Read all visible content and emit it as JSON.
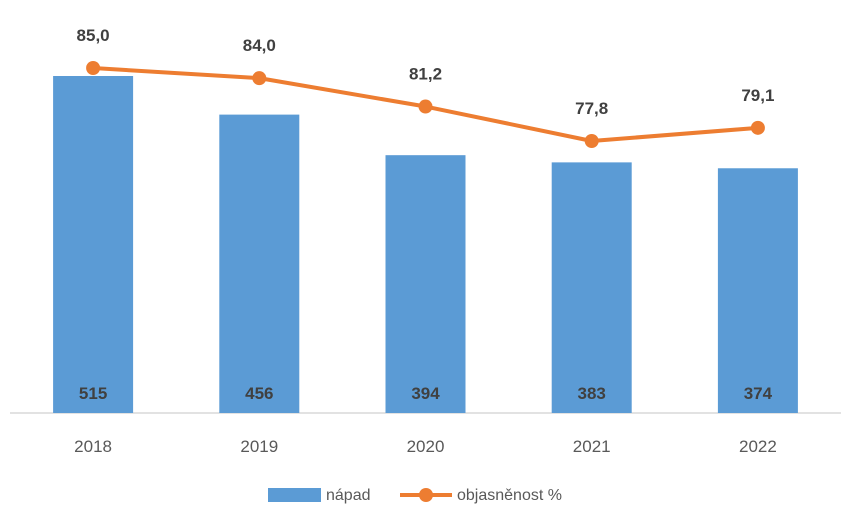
{
  "chart_data": {
    "type": "bar",
    "categories": [
      "2018",
      "2019",
      "2020",
      "2021",
      "2022"
    ],
    "series": [
      {
        "name": "nápad",
        "type": "bar",
        "values": [
          515,
          456,
          394,
          383,
          374
        ],
        "color": "#5B9BD5"
      },
      {
        "name": "objasněnost %",
        "type": "line",
        "values": [
          85.0,
          84.0,
          81.2,
          77.8,
          79.1
        ],
        "labels": [
          "85,0",
          "84,0",
          "81,2",
          "77,8",
          "79,1"
        ],
        "color": "#ED7D31"
      }
    ],
    "bar_labels": [
      "515",
      "456",
      "394",
      "383",
      "374"
    ],
    "axis_color": "#D9D9D9",
    "grid": false,
    "legend_position": "bottom",
    "title": "",
    "xlabel": "",
    "ylabel": ""
  }
}
